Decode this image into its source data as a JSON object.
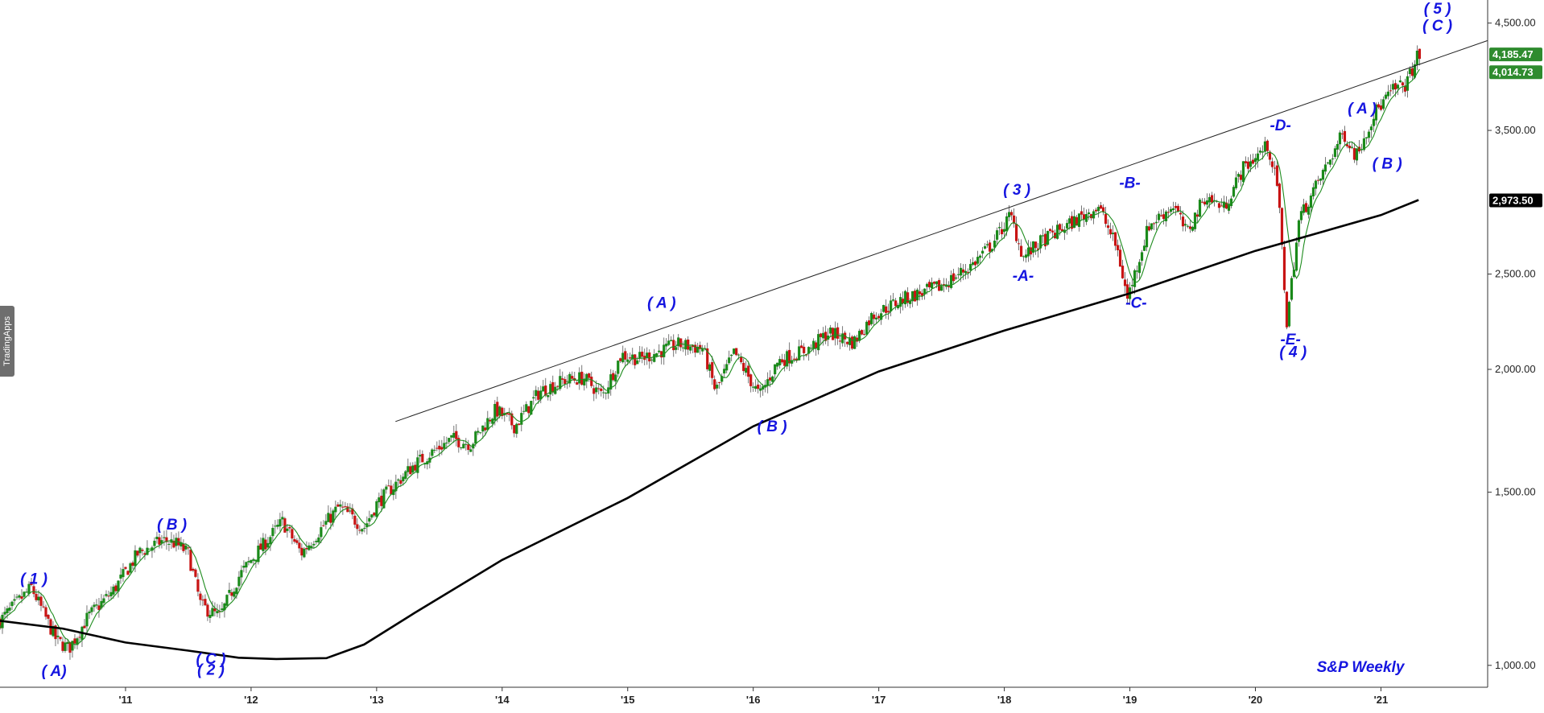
{
  "chart_data": {
    "type": "candlestick",
    "title": "S&P Weekly",
    "y_scale": "log",
    "ylim": [
      950,
      4750
    ],
    "x_range": [
      2010.0,
      2021.85
    ],
    "yticks": [
      "4,500.00",
      "3,500.00",
      "2,500.00",
      "2,000.00",
      "1,500.00",
      "1,000.00"
    ],
    "ytick_values": [
      4500,
      3500,
      2500,
      2000,
      1500,
      1000
    ],
    "xticks": [
      "'11",
      "'12",
      "'13",
      "'14",
      "'15",
      "'16",
      "'17",
      "'18",
      "'19",
      "'20",
      "'21"
    ],
    "xtick_values": [
      2011,
      2012,
      2013,
      2014,
      2015,
      2016,
      2017,
      2018,
      2019,
      2020,
      2021
    ],
    "price_path": [
      [
        2010.0,
        1110
      ],
      [
        2010.25,
        1200
      ],
      [
        2010.45,
        1060
      ],
      [
        2010.55,
        1040
      ],
      [
        2010.7,
        1120
      ],
      [
        2010.9,
        1190
      ],
      [
        2011.1,
        1300
      ],
      [
        2011.3,
        1340
      ],
      [
        2011.4,
        1330
      ],
      [
        2011.5,
        1300
      ],
      [
        2011.6,
        1150
      ],
      [
        2011.75,
        1120
      ],
      [
        2011.9,
        1230
      ],
      [
        2012.0,
        1280
      ],
      [
        2012.25,
        1400
      ],
      [
        2012.4,
        1300
      ],
      [
        2012.7,
        1450
      ],
      [
        2012.9,
        1380
      ],
      [
        2013.0,
        1460
      ],
      [
        2013.3,
        1600
      ],
      [
        2013.45,
        1650
      ],
      [
        2013.6,
        1700
      ],
      [
        2013.75,
        1680
      ],
      [
        2013.95,
        1820
      ],
      [
        2014.1,
        1750
      ],
      [
        2014.3,
        1900
      ],
      [
        2014.5,
        1950
      ],
      [
        2014.65,
        1960
      ],
      [
        2014.8,
        1880
      ],
      [
        2014.95,
        2070
      ],
      [
        2015.1,
        2050
      ],
      [
        2015.4,
        2120
      ],
      [
        2015.6,
        2100
      ],
      [
        2015.7,
        1900
      ],
      [
        2015.85,
        2080
      ],
      [
        2016.05,
        1880
      ],
      [
        2016.2,
        2040
      ],
      [
        2016.45,
        2100
      ],
      [
        2016.6,
        2180
      ],
      [
        2016.8,
        2130
      ],
      [
        2016.95,
        2270
      ],
      [
        2017.2,
        2360
      ],
      [
        2017.5,
        2430
      ],
      [
        2017.75,
        2560
      ],
      [
        2017.9,
        2680
      ],
      [
        2018.05,
        2870
      ],
      [
        2018.15,
        2600
      ],
      [
        2018.3,
        2700
      ],
      [
        2018.5,
        2800
      ],
      [
        2018.75,
        2930
      ],
      [
        2018.9,
        2650
      ],
      [
        2018.98,
        2360
      ],
      [
        2019.15,
        2800
      ],
      [
        2019.35,
        2940
      ],
      [
        2019.45,
        2750
      ],
      [
        2019.6,
        3000
      ],
      [
        2019.75,
        2920
      ],
      [
        2019.9,
        3200
      ],
      [
        2020.1,
        3380
      ],
      [
        2020.18,
        3050
      ],
      [
        2020.25,
        2230
      ],
      [
        2020.35,
        2850
      ],
      [
        2020.5,
        3100
      ],
      [
        2020.7,
        3480
      ],
      [
        2020.8,
        3300
      ],
      [
        2020.95,
        3650
      ],
      [
        2021.1,
        3850
      ],
      [
        2021.2,
        3900
      ],
      [
        2021.3,
        4185
      ]
    ],
    "series": [
      {
        "name": "",
        "type": "ma_fast",
        "color": "#1e8c1e"
      },
      {
        "name": "",
        "type": "ma_slow",
        "color": "#000000",
        "values": [
          [
            2010.0,
            1110
          ],
          [
            2010.5,
            1090
          ],
          [
            2011.0,
            1055
          ],
          [
            2011.5,
            1035
          ],
          [
            2011.9,
            1018
          ],
          [
            2012.2,
            1015
          ],
          [
            2012.6,
            1017
          ],
          [
            2012.9,
            1050
          ],
          [
            2013.3,
            1130
          ],
          [
            2014.0,
            1280
          ],
          [
            2015.0,
            1480
          ],
          [
            2016.0,
            1750
          ],
          [
            2017.0,
            1990
          ],
          [
            2018.0,
            2190
          ],
          [
            2019.0,
            2390
          ],
          [
            2020.0,
            2640
          ],
          [
            2021.0,
            2870
          ],
          [
            2021.3,
            2973.5
          ]
        ]
      }
    ],
    "trendline": {
      "from": [
        2013.15,
        1770
      ],
      "to": [
        2021.85,
        4320
      ]
    },
    "last_values": [
      {
        "label": "4,185.47",
        "value": 4185.47,
        "color": "#2e8b2e"
      },
      {
        "label": "4,014.73",
        "value": 4014.73,
        "color": "#2e8b2e"
      },
      {
        "label": "2,973.50",
        "value": 2973.5,
        "color": "#000000"
      }
    ],
    "annotations": [
      {
        "text": "( 1 )",
        "x": 2010.27,
        "y": 1210
      },
      {
        "text": "( A)",
        "x": 2010.43,
        "y": 975
      },
      {
        "text": "( B )",
        "x": 2011.37,
        "y": 1375
      },
      {
        "text": "( C )",
        "x": 2011.68,
        "y": 1003
      },
      {
        "text": "( 2 )",
        "x": 2011.68,
        "y": 978
      },
      {
        "text": "( A )",
        "x": 2015.27,
        "y": 2310
      },
      {
        "text": "( B )",
        "x": 2016.15,
        "y": 1730
      },
      {
        "text": "( 3 )",
        "x": 2018.1,
        "y": 3010
      },
      {
        "text": "-B-",
        "x": 2019.0,
        "y": 3060
      },
      {
        "text": "-A-",
        "x": 2018.15,
        "y": 2460
      },
      {
        "text": "-C-",
        "x": 2019.05,
        "y": 2310
      },
      {
        "text": "-D-",
        "x": 2020.2,
        "y": 3500
      },
      {
        "text": "( A )",
        "x": 2020.85,
        "y": 3640
      },
      {
        "text": "( B )",
        "x": 2021.05,
        "y": 3200
      },
      {
        "text": "-E-",
        "x": 2020.28,
        "y": 2120
      },
      {
        "text": "( 4 )",
        "x": 2020.3,
        "y": 2060
      },
      {
        "text": "( 5 )",
        "x": 2021.45,
        "y": 4600
      },
      {
        "text": "( C )",
        "x": 2021.45,
        "y": 4420
      }
    ]
  },
  "watermark": "TradingApps"
}
